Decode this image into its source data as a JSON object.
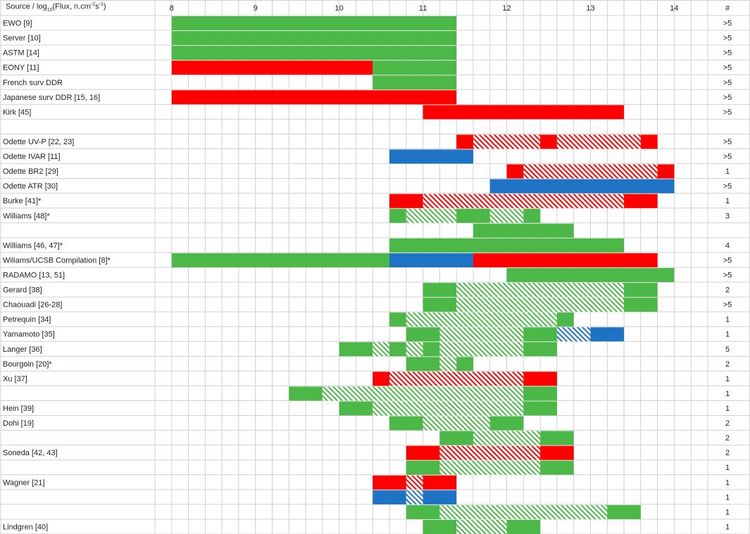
{
  "chart_data": {
    "type": "range-bar",
    "title": "",
    "header": {
      "source_prefix": "Source / log",
      "log_sub": "10",
      "flux_prefix": "(Flux, n.cm",
      "flux_sup1": "-2",
      "flux_mid": "s",
      "flux_sup2": "-1",
      "flux_suffix": ")",
      "count_label": "#"
    },
    "x_ticks": [
      "8",
      "9",
      "10",
      "11",
      "12",
      "13",
      "14"
    ],
    "x_range": [
      7.8,
      14.4
    ],
    "colors": {
      "green": "#4cb848",
      "red": "#fe0000",
      "blue": "#1e73c5",
      "grid": "#d0d0d0"
    },
    "legend": "none",
    "grid": true,
    "rows": [
      {
        "label": "EWO [9]",
        "count": ">5",
        "segments": [
          {
            "start": 8.0,
            "end": 11.4,
            "color": "green"
          }
        ]
      },
      {
        "label": "Server [10]",
        "count": ">5",
        "segments": [
          {
            "start": 8.0,
            "end": 11.4,
            "color": "green"
          }
        ]
      },
      {
        "label": "ASTM [14]",
        "count": ">5",
        "segments": [
          {
            "start": 8.0,
            "end": 11.4,
            "color": "green"
          }
        ]
      },
      {
        "label": "EONY [11]",
        "count": ">5",
        "segments": [
          {
            "start": 8.0,
            "end": 10.4,
            "color": "red"
          },
          {
            "start": 10.4,
            "end": 11.4,
            "color": "green"
          }
        ]
      },
      {
        "label": "French surv DDR",
        "count": ">5",
        "segments": [
          {
            "start": 10.4,
            "end": 11.4,
            "color": "green"
          }
        ]
      },
      {
        "label": "Japanese surv DDR [15, 16]",
        "count": ">5",
        "segments": [
          {
            "start": 8.0,
            "end": 11.4,
            "color": "red"
          }
        ]
      },
      {
        "label": "Kirk [45]",
        "count": ">5",
        "segments": [
          {
            "start": 11.0,
            "end": 13.4,
            "color": "red"
          }
        ]
      },
      {
        "label": "",
        "count": "",
        "segments": []
      },
      {
        "label": "Odette UV-P [22, 23]",
        "count": ">5",
        "segments": [
          {
            "start": 11.4,
            "end": 11.6,
            "color": "red"
          },
          {
            "start": 11.6,
            "end": 12.4,
            "color": "red",
            "hatched": true
          },
          {
            "start": 12.4,
            "end": 12.6,
            "color": "red"
          },
          {
            "start": 12.6,
            "end": 13.6,
            "color": "red",
            "hatched": true
          },
          {
            "start": 13.6,
            "end": 13.8,
            "color": "red"
          }
        ]
      },
      {
        "label": "Odette IVAR [11]",
        "count": ">5",
        "segments": [
          {
            "start": 10.6,
            "end": 11.6,
            "color": "blue"
          }
        ]
      },
      {
        "label": "Odette BR2 [29]",
        "count": "1",
        "segments": [
          {
            "start": 12.0,
            "end": 12.2,
            "color": "red"
          },
          {
            "start": 12.2,
            "end": 13.8,
            "color": "red",
            "hatched": true
          },
          {
            "start": 13.8,
            "end": 14.0,
            "color": "red"
          }
        ]
      },
      {
        "label": "Odette ATR [30]",
        "count": ">5",
        "segments": [
          {
            "start": 11.8,
            "end": 14.0,
            "color": "blue"
          }
        ]
      },
      {
        "label": "Burke [41]*",
        "count": "1",
        "segments": [
          {
            "start": 10.6,
            "end": 11.0,
            "color": "red"
          },
          {
            "start": 11.0,
            "end": 13.4,
            "color": "red",
            "hatched": true
          },
          {
            "start": 13.4,
            "end": 13.8,
            "color": "red"
          }
        ]
      },
      {
        "label": "Williams [48]*",
        "count": "3",
        "segments": [
          {
            "start": 10.6,
            "end": 10.8,
            "color": "green"
          },
          {
            "start": 10.8,
            "end": 11.4,
            "color": "green",
            "hatched": true
          },
          {
            "start": 11.4,
            "end": 11.8,
            "color": "green"
          },
          {
            "start": 11.8,
            "end": 12.2,
            "color": "green",
            "hatched": true
          },
          {
            "start": 12.2,
            "end": 12.4,
            "color": "green"
          }
        ]
      },
      {
        "label": "",
        "count": "",
        "segments": [
          {
            "start": 11.6,
            "end": 12.8,
            "color": "green"
          }
        ]
      },
      {
        "label": "Williams [46, 47]*",
        "count": "4",
        "segments": [
          {
            "start": 10.6,
            "end": 13.4,
            "color": "green"
          }
        ]
      },
      {
        "label": "Wiliams/UCSB Compilation [8]*",
        "count": ">5",
        "segments": [
          {
            "start": 8.0,
            "end": 10.6,
            "color": "green"
          },
          {
            "start": 10.6,
            "end": 11.6,
            "color": "blue"
          },
          {
            "start": 11.6,
            "end": 13.8,
            "color": "red"
          }
        ]
      },
      {
        "label": "RADAMO [13, 51]",
        "count": ">5",
        "segments": [
          {
            "start": 12.0,
            "end": 14.0,
            "color": "green"
          }
        ]
      },
      {
        "label": "Gerard [38]",
        "count": "2",
        "segments": [
          {
            "start": 11.0,
            "end": 11.4,
            "color": "green"
          },
          {
            "start": 11.4,
            "end": 13.4,
            "color": "green",
            "hatched": true
          },
          {
            "start": 13.4,
            "end": 13.8,
            "color": "green"
          }
        ]
      },
      {
        "label": "Chaouadi [26-28]",
        "count": ">5",
        "segments": [
          {
            "start": 11.0,
            "end": 11.4,
            "color": "green"
          },
          {
            "start": 11.4,
            "end": 13.4,
            "color": "green",
            "hatched": true
          },
          {
            "start": 13.4,
            "end": 13.8,
            "color": "green"
          }
        ]
      },
      {
        "label": "Petrequin [34]",
        "count": "1",
        "segments": [
          {
            "start": 10.6,
            "end": 10.8,
            "color": "green"
          },
          {
            "start": 10.8,
            "end": 12.6,
            "color": "green",
            "hatched": true
          },
          {
            "start": 12.6,
            "end": 12.8,
            "color": "green"
          }
        ]
      },
      {
        "label": "Yamamoto [35]",
        "count": "1",
        "segments": [
          {
            "start": 10.8,
            "end": 11.2,
            "color": "green"
          },
          {
            "start": 11.2,
            "end": 12.2,
            "color": "green",
            "hatched": true
          },
          {
            "start": 12.2,
            "end": 12.6,
            "color": "green"
          },
          {
            "start": 12.6,
            "end": 13.0,
            "color": "blue",
            "hatched": true
          },
          {
            "start": 13.0,
            "end": 13.4,
            "color": "blue"
          }
        ]
      },
      {
        "label": "Langer [36]",
        "count": "5",
        "segments": [
          {
            "start": 10.0,
            "end": 10.4,
            "color": "green"
          },
          {
            "start": 10.4,
            "end": 10.6,
            "color": "green",
            "hatched": true
          },
          {
            "start": 10.6,
            "end": 10.8,
            "color": "green"
          },
          {
            "start": 10.8,
            "end": 11.0,
            "color": "green",
            "hatched": true
          },
          {
            "start": 11.0,
            "end": 11.2,
            "color": "green"
          },
          {
            "start": 11.2,
            "end": 12.2,
            "color": "green",
            "hatched": true
          },
          {
            "start": 12.2,
            "end": 12.6,
            "color": "green"
          }
        ]
      },
      {
        "label": "Bourgoin [20]*",
        "count": "2",
        "segments": [
          {
            "start": 10.8,
            "end": 11.2,
            "color": "green"
          },
          {
            "start": 11.2,
            "end": 11.4,
            "color": "green",
            "hatched": true
          },
          {
            "start": 11.4,
            "end": 11.6,
            "color": "green"
          }
        ]
      },
      {
        "label": "Xu [37]",
        "count": "1",
        "segments": [
          {
            "start": 10.4,
            "end": 10.6,
            "color": "red"
          },
          {
            "start": 10.6,
            "end": 12.2,
            "color": "red",
            "hatched": true
          },
          {
            "start": 12.2,
            "end": 12.6,
            "color": "red"
          }
        ]
      },
      {
        "label": "",
        "count": "1",
        "segments": [
          {
            "start": 9.4,
            "end": 9.8,
            "color": "green"
          },
          {
            "start": 9.8,
            "end": 12.2,
            "color": "green",
            "hatched": true
          },
          {
            "start": 12.2,
            "end": 12.6,
            "color": "green"
          }
        ]
      },
      {
        "label": "Hein [39]",
        "count": "1",
        "segments": [
          {
            "start": 10.0,
            "end": 10.4,
            "color": "green"
          },
          {
            "start": 10.4,
            "end": 12.2,
            "color": "green",
            "hatched": true
          },
          {
            "start": 12.2,
            "end": 12.6,
            "color": "green"
          }
        ]
      },
      {
        "label": "Dohi [19]",
        "count": "2",
        "segments": [
          {
            "start": 10.6,
            "end": 11.0,
            "color": "green"
          },
          {
            "start": 11.0,
            "end": 11.8,
            "color": "green",
            "hatched": true
          },
          {
            "start": 11.8,
            "end": 12.2,
            "color": "green"
          }
        ]
      },
      {
        "label": "",
        "count": "2",
        "segments": [
          {
            "start": 11.2,
            "end": 11.6,
            "color": "green"
          },
          {
            "start": 11.6,
            "end": 12.4,
            "color": "green",
            "hatched": true
          },
          {
            "start": 12.4,
            "end": 12.8,
            "color": "green"
          }
        ]
      },
      {
        "label": "Soneda [42, 43]",
        "count": "2",
        "segments": [
          {
            "start": 10.8,
            "end": 11.2,
            "color": "red"
          },
          {
            "start": 11.2,
            "end": 12.4,
            "color": "red",
            "hatched": true
          },
          {
            "start": 12.4,
            "end": 12.8,
            "color": "red"
          }
        ]
      },
      {
        "label": "",
        "count": "1",
        "segments": [
          {
            "start": 10.8,
            "end": 11.2,
            "color": "green"
          },
          {
            "start": 11.2,
            "end": 12.4,
            "color": "green",
            "hatched": true
          },
          {
            "start": 12.4,
            "end": 12.8,
            "color": "green"
          }
        ]
      },
      {
        "label": "Wagner [21]",
        "count": "1",
        "segments": [
          {
            "start": 10.4,
            "end": 10.8,
            "color": "red"
          },
          {
            "start": 10.8,
            "end": 11.0,
            "color": "red",
            "hatched": true
          },
          {
            "start": 11.0,
            "end": 11.4,
            "color": "red"
          }
        ]
      },
      {
        "label": "",
        "count": "1",
        "segments": [
          {
            "start": 10.4,
            "end": 10.8,
            "color": "blue"
          },
          {
            "start": 10.8,
            "end": 11.0,
            "color": "blue",
            "hatched": true
          },
          {
            "start": 11.0,
            "end": 11.4,
            "color": "blue"
          }
        ]
      },
      {
        "label": "",
        "count": "1",
        "segments": [
          {
            "start": 10.8,
            "end": 11.2,
            "color": "green"
          },
          {
            "start": 11.2,
            "end": 13.2,
            "color": "green",
            "hatched": true
          },
          {
            "start": 13.2,
            "end": 13.6,
            "color": "green"
          }
        ]
      },
      {
        "label": "Lindgren [40]",
        "count": "1",
        "segments": [
          {
            "start": 11.0,
            "end": 11.4,
            "color": "green"
          },
          {
            "start": 11.4,
            "end": 12.0,
            "color": "green",
            "hatched": true
          },
          {
            "start": 12.0,
            "end": 12.4,
            "color": "green"
          }
        ]
      }
    ]
  }
}
